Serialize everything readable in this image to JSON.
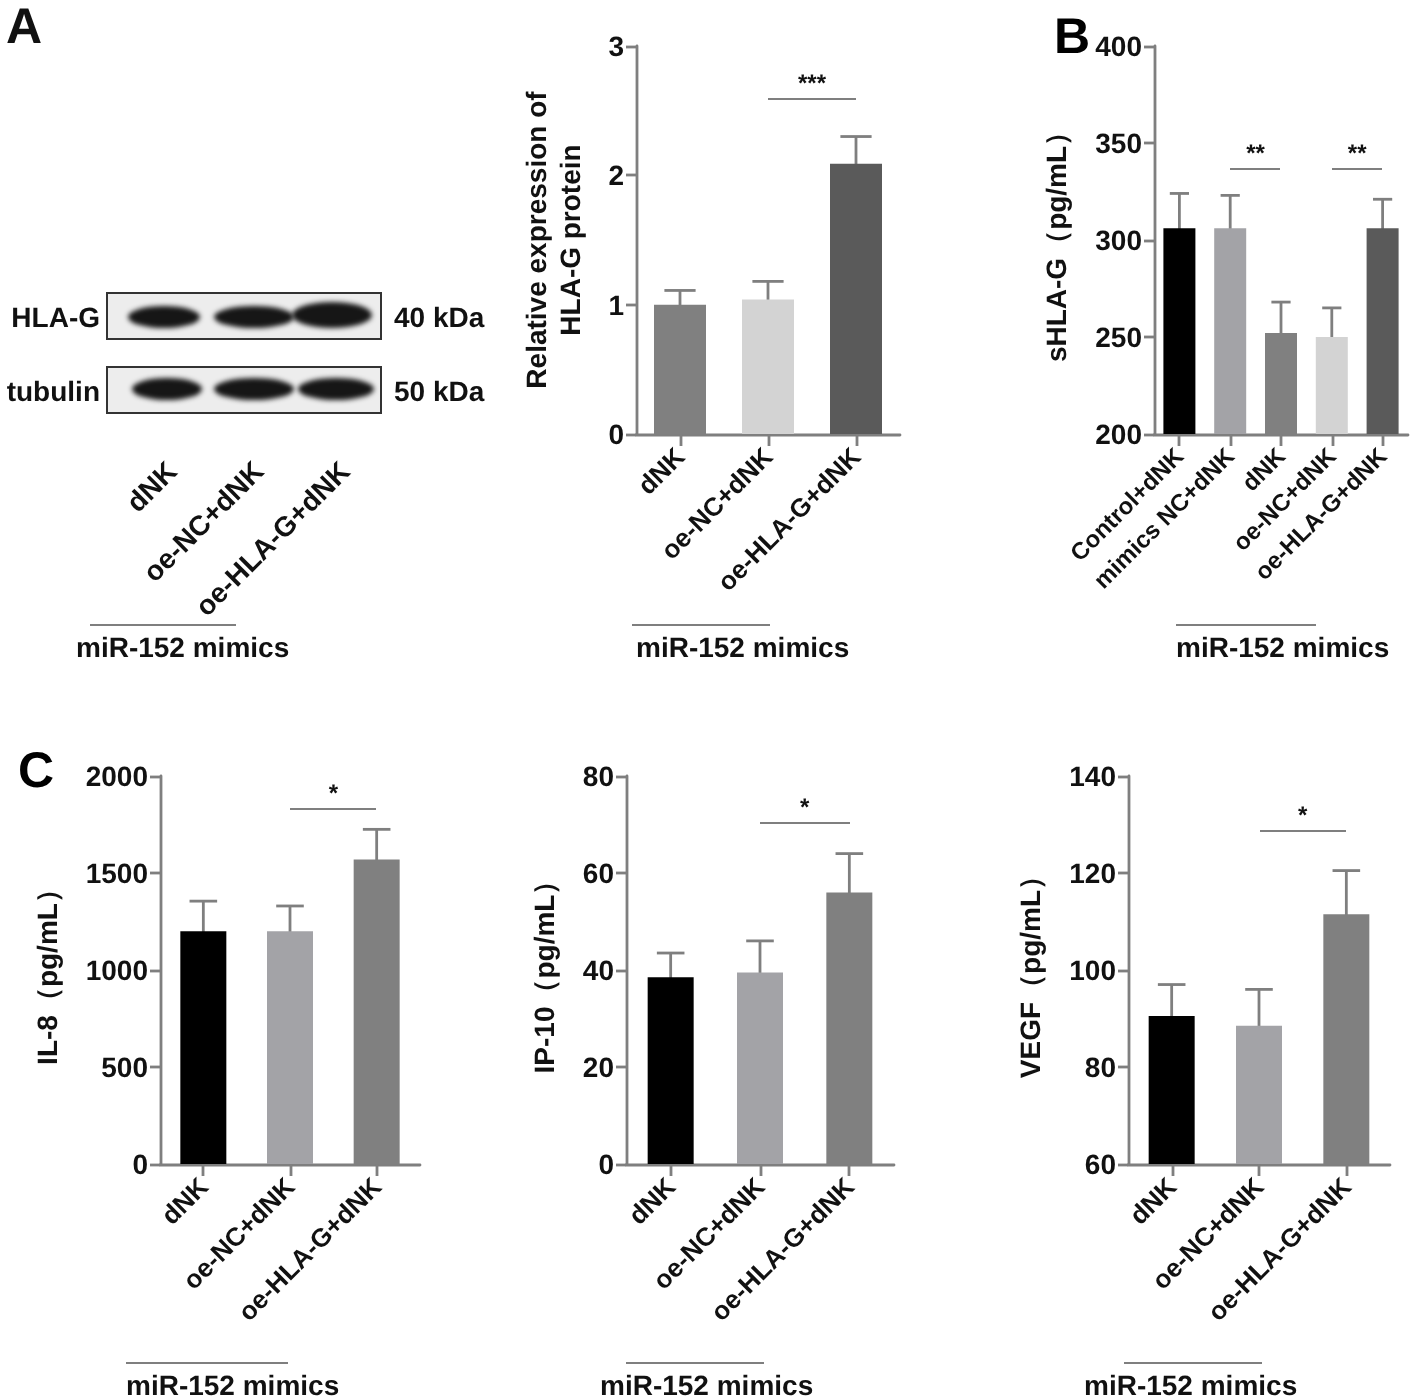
{
  "chart_data": [
    {
      "type": "other",
      "title": "A",
      "categories": [
        "dNK",
        "oe-NC+dNK",
        "oe-HLA-G+dNK"
      ],
      "annotations": [
        "HLA-G",
        "40 kDa",
        "tubulin",
        "50 kDa",
        "miR-152 mimics"
      ]
    },
    {
      "type": "bar",
      "ylabel": "Relative expression of HLA-G protein",
      "categories": [
        "dNK",
        "oe-NC+dNK",
        "oe-HLA-G+dNK"
      ],
      "values": [
        1.0,
        1.04,
        2.09
      ],
      "errors": [
        0.11,
        0.14,
        0.21
      ],
      "colors": [
        "#808080",
        "#d3d3d3",
        "#5a5a5a"
      ],
      "ylim": [
        0,
        3
      ],
      "yticks": [
        0,
        1,
        2,
        3
      ],
      "annotations": [
        "***",
        "miR-152 mimics"
      ]
    },
    {
      "type": "bar",
      "title": "B",
      "ylabel": "sHLA-G（pg/mL）",
      "categories": [
        "Control+dNK",
        "mimics NC+dNK",
        "dNK",
        "oe-NC+dNK",
        "oe-HLA-G+dNK"
      ],
      "values": [
        306,
        306,
        252,
        250,
        306
      ],
      "errors": [
        18,
        17,
        16,
        15,
        15
      ],
      "colors": [
        "#000000",
        "#a3a3a7",
        "#808080",
        "#d3d3d3",
        "#5a5a5a"
      ],
      "ylim": [
        200,
        400
      ],
      "yticks": [
        200,
        250,
        300,
        350,
        400
      ],
      "annotations": [
        "**",
        "**",
        "miR-152 mimics"
      ]
    },
    {
      "type": "bar",
      "title": "C",
      "ylabel": "IL-8（pg/mL）",
      "categories": [
        "dNK",
        "oe-NC+dNK",
        "oe-HLA-G+dNK"
      ],
      "values": [
        1200,
        1200,
        1570
      ],
      "errors": [
        155,
        130,
        155
      ],
      "colors": [
        "#000000",
        "#a3a3a7",
        "#808080"
      ],
      "ylim": [
        0,
        2000
      ],
      "yticks": [
        0,
        500,
        1000,
        1500,
        2000
      ],
      "annotations": [
        "*",
        "miR-152 mimics"
      ]
    },
    {
      "type": "bar",
      "ylabel": "IP-10（pg/mL）",
      "categories": [
        "dNK",
        "oe-NC+dNK",
        "oe-HLA-G+dNK"
      ],
      "values": [
        38.5,
        39.5,
        56
      ],
      "errors": [
        5,
        6.5,
        8
      ],
      "colors": [
        "#000000",
        "#a3a3a7",
        "#808080"
      ],
      "ylim": [
        0,
        80
      ],
      "yticks": [
        0,
        20,
        40,
        60,
        80
      ],
      "annotations": [
        "*",
        "miR-152 mimics"
      ]
    },
    {
      "type": "bar",
      "ylabel": "VEGF（pg/mL）",
      "categories": [
        "dNK",
        "oe-NC+dNK",
        "oe-HLA-G+dNK"
      ],
      "values": [
        90.5,
        88.5,
        111.5
      ],
      "errors": [
        6.5,
        7.5,
        9
      ],
      "colors": [
        "#000000",
        "#a3a3a7",
        "#808080"
      ],
      "ylim": [
        60,
        140
      ],
      "yticks": [
        60,
        80,
        100,
        120,
        140
      ],
      "annotations": [
        "*",
        "miR-152 mimics"
      ]
    }
  ]
}
